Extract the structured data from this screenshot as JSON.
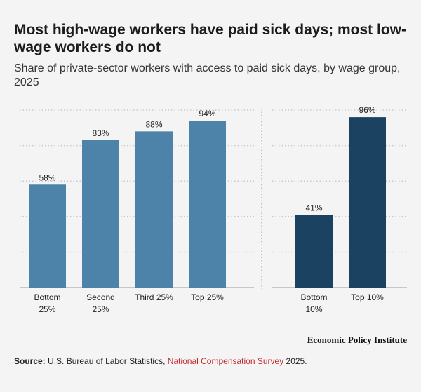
{
  "title": "Most high-wage workers have paid sick days; most low-wage workers do not",
  "subtitle": "Share of private-sector workers with access to paid sick days, by wage group, 2025",
  "chart_data": {
    "type": "bar",
    "ylim": [
      0,
      100
    ],
    "grid": true,
    "panels": [
      {
        "name": "quartiles",
        "color": "#4d83a8",
        "categories": [
          [
            "Bottom",
            "25%"
          ],
          [
            "Second",
            "25%"
          ],
          [
            "Third 25%"
          ],
          [
            "Top 25%"
          ]
        ],
        "values": [
          58,
          83,
          88,
          94
        ],
        "labels": [
          "58%",
          "83%",
          "88%",
          "94%"
        ]
      },
      {
        "name": "deciles",
        "color": "#1b4261",
        "categories": [
          [
            "Bottom",
            "10%"
          ],
          [
            "Top 10%"
          ]
        ],
        "values": [
          41,
          96
        ],
        "labels": [
          "41%",
          "96%"
        ]
      }
    ]
  },
  "brand": "Economic Policy Institute",
  "source": {
    "label": "Source:",
    "text_before": " U.S. Bureau of Labor Statistics, ",
    "link": "National Compensation Survey",
    "text_after": " 2025."
  }
}
